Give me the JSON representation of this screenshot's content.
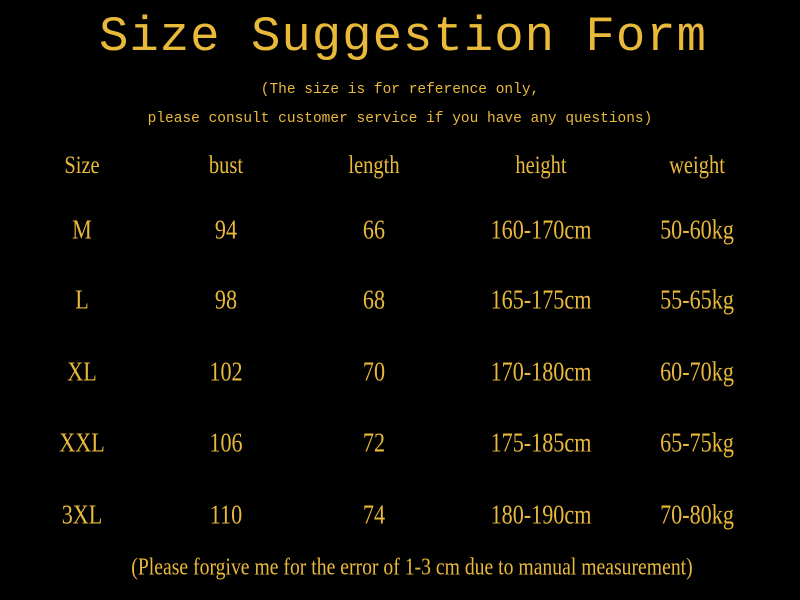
{
  "title": "Size Suggestion Form",
  "subtitle": [
    "(The size is for reference only,",
    "please consult customer service if you have any questions)"
  ],
  "table": {
    "header": [
      "Size",
      "bust",
      "length",
      "height",
      "weight"
    ],
    "rows": [
      [
        "M",
        "94",
        "66",
        "160-170cm",
        "50-60kg"
      ],
      [
        "L",
        "98",
        "68",
        "165-175cm",
        "55-65kg"
      ],
      [
        "XL",
        "102",
        "70",
        "170-180cm",
        "60-70kg"
      ],
      [
        "XXL",
        "106",
        "72",
        "175-185cm",
        "65-75kg"
      ],
      [
        "3XL",
        "110",
        "74",
        "180-190cm",
        "70-80kg"
      ]
    ]
  },
  "note": "(Please forgive me for the error of 1-3 cm due to manual measurement)"
}
